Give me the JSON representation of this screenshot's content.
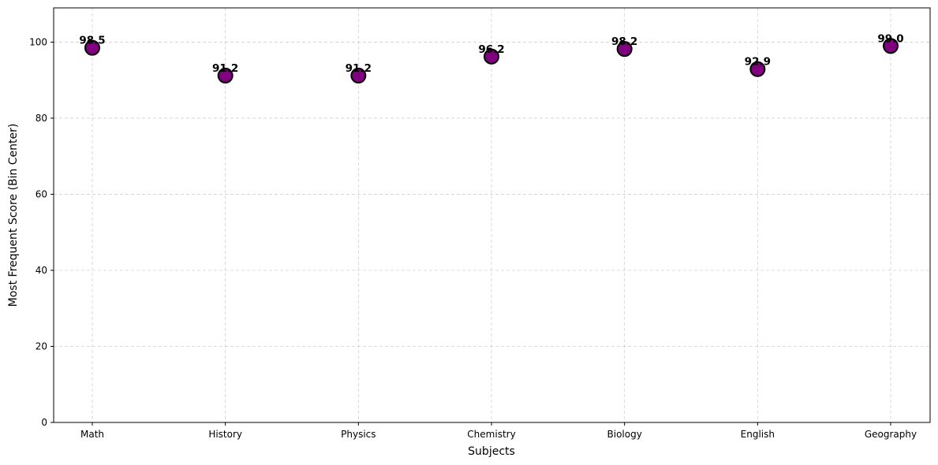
{
  "chart_data": {
    "type": "scatter",
    "categories": [
      "Math",
      "History",
      "Physics",
      "Chemistry",
      "Biology",
      "English",
      "Geography"
    ],
    "values": [
      98.5,
      91.2,
      91.2,
      96.2,
      98.2,
      92.9,
      99.0
    ],
    "data_labels": [
      "98.5",
      "91.2",
      "91.2",
      "96.2",
      "98.2",
      "92.9",
      "99.0"
    ],
    "xlabel": "Subjects",
    "ylabel": "Most Frequent Score (Bin Center)",
    "ylim": [
      0,
      109
    ],
    "yticks": [
      0,
      20,
      40,
      60,
      80,
      100
    ],
    "grid": true,
    "marker_color": "#800080",
    "marker_edge_color": "#000000"
  }
}
